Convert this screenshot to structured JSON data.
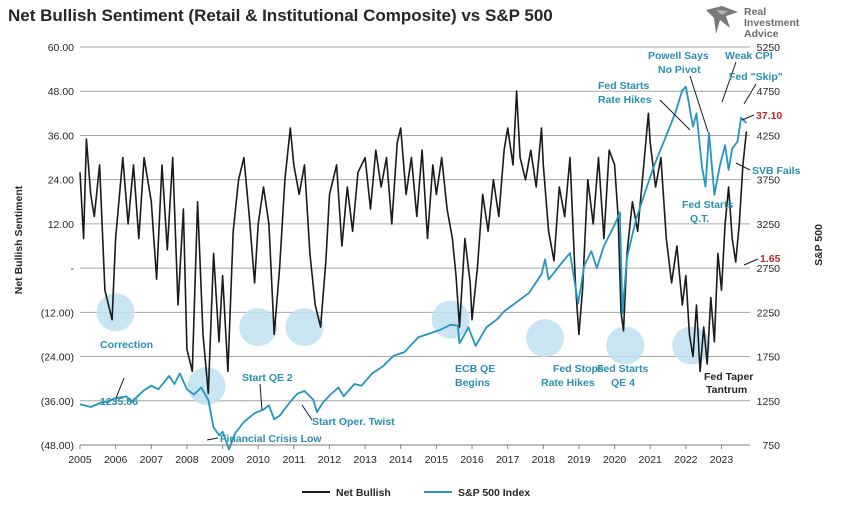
{
  "chart_data": {
    "type": "line",
    "title": "Net Bullish Sentiment (Retail & Institutional Composite) vs S&P 500",
    "ylabel": "Net Bullish Sentiment",
    "y2label": "S&P 500",
    "ylim": [
      -48,
      60
    ],
    "y2lim": [
      750,
      5250
    ],
    "xlim": [
      2005,
      2023.8
    ],
    "y_ticks": [
      "60.00",
      "48.00",
      "36.00",
      "24.00",
      "12.00",
      "-",
      "(12.00)",
      "(24.00)",
      "(36.00)",
      "(48.00)"
    ],
    "y_tick_values": [
      60,
      48,
      36,
      24,
      12,
      0,
      -12,
      -24,
      -36,
      -48
    ],
    "y2_ticks": [
      "5250",
      "4750",
      "4250",
      "3750",
      "3250",
      "2750",
      "2250",
      "1750",
      "1250",
      "750"
    ],
    "y2_tick_values": [
      5250,
      4750,
      4250,
      3750,
      3250,
      2750,
      2250,
      1750,
      1250,
      750
    ],
    "x_ticks": [
      "2005",
      "2006",
      "2007",
      "2008",
      "2009",
      "2010",
      "2011",
      "2012",
      "2013",
      "2014",
      "2015",
      "2016",
      "2017",
      "2018",
      "2019",
      "2020",
      "2021",
      "2022",
      "2023"
    ],
    "x_tick_values": [
      2005,
      2006,
      2007,
      2008,
      2009,
      2010,
      2011,
      2012,
      2013,
      2014,
      2015,
      2016,
      2017,
      2018,
      2019,
      2020,
      2021,
      2022,
      2023
    ],
    "series": [
      {
        "name": "Net Bullish",
        "color": "#1a1a1a",
        "axis": "left",
        "points": [
          [
            2005.0,
            26
          ],
          [
            2005.1,
            8
          ],
          [
            2005.18,
            35
          ],
          [
            2005.3,
            20
          ],
          [
            2005.4,
            14
          ],
          [
            2005.55,
            28
          ],
          [
            2005.7,
            -6
          ],
          [
            2005.9,
            -14
          ],
          [
            2006.0,
            8
          ],
          [
            2006.2,
            30
          ],
          [
            2006.35,
            12
          ],
          [
            2006.5,
            28
          ],
          [
            2006.65,
            8
          ],
          [
            2006.8,
            30
          ],
          [
            2007.0,
            18
          ],
          [
            2007.15,
            -3
          ],
          [
            2007.3,
            28
          ],
          [
            2007.45,
            5
          ],
          [
            2007.6,
            30
          ],
          [
            2007.75,
            -10
          ],
          [
            2007.9,
            16
          ],
          [
            2008.0,
            -22
          ],
          [
            2008.15,
            -28
          ],
          [
            2008.3,
            18
          ],
          [
            2008.45,
            -18
          ],
          [
            2008.6,
            -34
          ],
          [
            2008.75,
            4
          ],
          [
            2008.9,
            -20
          ],
          [
            2009.0,
            -2
          ],
          [
            2009.15,
            -28
          ],
          [
            2009.3,
            10
          ],
          [
            2009.45,
            24
          ],
          [
            2009.6,
            30
          ],
          [
            2009.75,
            14
          ],
          [
            2009.9,
            -4
          ],
          [
            2010.0,
            12
          ],
          [
            2010.15,
            22
          ],
          [
            2010.3,
            12
          ],
          [
            2010.45,
            -18
          ],
          [
            2010.6,
            0
          ],
          [
            2010.75,
            24
          ],
          [
            2010.9,
            38
          ],
          [
            2011.0,
            28
          ],
          [
            2011.15,
            20
          ],
          [
            2011.3,
            28
          ],
          [
            2011.45,
            4
          ],
          [
            2011.6,
            -10
          ],
          [
            2011.75,
            -16
          ],
          [
            2011.9,
            2
          ],
          [
            2012.0,
            20
          ],
          [
            2012.2,
            28
          ],
          [
            2012.35,
            6
          ],
          [
            2012.5,
            22
          ],
          [
            2012.65,
            10
          ],
          [
            2012.8,
            26
          ],
          [
            2013.0,
            30
          ],
          [
            2013.15,
            16
          ],
          [
            2013.3,
            32
          ],
          [
            2013.45,
            22
          ],
          [
            2013.6,
            30
          ],
          [
            2013.75,
            12
          ],
          [
            2013.9,
            34
          ],
          [
            2014.0,
            38
          ],
          [
            2014.15,
            20
          ],
          [
            2014.3,
            30
          ],
          [
            2014.45,
            14
          ],
          [
            2014.6,
            32
          ],
          [
            2014.75,
            8
          ],
          [
            2014.9,
            28
          ],
          [
            2015.0,
            20
          ],
          [
            2015.15,
            30
          ],
          [
            2015.3,
            16
          ],
          [
            2015.45,
            8
          ],
          [
            2015.55,
            -2
          ],
          [
            2015.65,
            -16
          ],
          [
            2015.8,
            8
          ],
          [
            2015.95,
            -4
          ],
          [
            2016.0,
            -14
          ],
          [
            2016.15,
            0
          ],
          [
            2016.3,
            20
          ],
          [
            2016.45,
            10
          ],
          [
            2016.6,
            24
          ],
          [
            2016.75,
            14
          ],
          [
            2016.9,
            32
          ],
          [
            2017.0,
            38
          ],
          [
            2017.15,
            28
          ],
          [
            2017.25,
            48
          ],
          [
            2017.35,
            30
          ],
          [
            2017.5,
            24
          ],
          [
            2017.65,
            32
          ],
          [
            2017.8,
            22
          ],
          [
            2017.95,
            38
          ],
          [
            2018.0,
            28
          ],
          [
            2018.15,
            10
          ],
          [
            2018.3,
            2
          ],
          [
            2018.45,
            22
          ],
          [
            2018.6,
            14
          ],
          [
            2018.75,
            30
          ],
          [
            2018.9,
            -4
          ],
          [
            2019.0,
            -18
          ],
          [
            2019.1,
            -6
          ],
          [
            2019.25,
            24
          ],
          [
            2019.4,
            12
          ],
          [
            2019.55,
            30
          ],
          [
            2019.7,
            8
          ],
          [
            2019.85,
            32
          ],
          [
            2020.0,
            28
          ],
          [
            2020.1,
            14
          ],
          [
            2020.18,
            -12
          ],
          [
            2020.25,
            -17
          ],
          [
            2020.35,
            4
          ],
          [
            2020.5,
            18
          ],
          [
            2020.65,
            10
          ],
          [
            2020.8,
            26
          ],
          [
            2020.95,
            42
          ],
          [
            2021.0,
            34
          ],
          [
            2021.15,
            22
          ],
          [
            2021.3,
            30
          ],
          [
            2021.45,
            8
          ],
          [
            2021.6,
            -4
          ],
          [
            2021.75,
            6
          ],
          [
            2021.9,
            -10
          ],
          [
            2022.0,
            -2
          ],
          [
            2022.1,
            -18
          ],
          [
            2022.2,
            -24
          ],
          [
            2022.3,
            -10
          ],
          [
            2022.4,
            -28
          ],
          [
            2022.5,
            -16
          ],
          [
            2022.6,
            -26
          ],
          [
            2022.7,
            -8
          ],
          [
            2022.8,
            -20
          ],
          [
            2022.9,
            4
          ],
          [
            2023.0,
            -6
          ],
          [
            2023.1,
            12
          ],
          [
            2023.2,
            22
          ],
          [
            2023.3,
            8
          ],
          [
            2023.4,
            1.65
          ],
          [
            2023.5,
            12
          ],
          [
            2023.6,
            28
          ],
          [
            2023.7,
            37.1
          ]
        ]
      },
      {
        "name": "S&P 500 Index",
        "color": "#2596be",
        "axis": "right",
        "points": [
          [
            2005.0,
            1211
          ],
          [
            2005.3,
            1180
          ],
          [
            2005.6,
            1230
          ],
          [
            2005.75,
            1235.86
          ],
          [
            2006.0,
            1280
          ],
          [
            2006.3,
            1300
          ],
          [
            2006.45,
            1240
          ],
          [
            2006.8,
            1370
          ],
          [
            2007.0,
            1420
          ],
          [
            2007.2,
            1380
          ],
          [
            2007.5,
            1530
          ],
          [
            2007.65,
            1440
          ],
          [
            2007.8,
            1560
          ],
          [
            2008.0,
            1380
          ],
          [
            2008.2,
            1320
          ],
          [
            2008.4,
            1400
          ],
          [
            2008.6,
            1260
          ],
          [
            2008.75,
            950
          ],
          [
            2008.9,
            860
          ],
          [
            2009.0,
            900
          ],
          [
            2009.18,
            700
          ],
          [
            2009.35,
            880
          ],
          [
            2009.6,
            1010
          ],
          [
            2009.9,
            1110
          ],
          [
            2010.15,
            1150
          ],
          [
            2010.3,
            1200
          ],
          [
            2010.45,
            1040
          ],
          [
            2010.6,
            1080
          ],
          [
            2010.9,
            1240
          ],
          [
            2011.1,
            1330
          ],
          [
            2011.3,
            1360
          ],
          [
            2011.55,
            1260
          ],
          [
            2011.65,
            1120
          ],
          [
            2011.8,
            1220
          ],
          [
            2012.0,
            1310
          ],
          [
            2012.25,
            1400
          ],
          [
            2012.4,
            1300
          ],
          [
            2012.7,
            1440
          ],
          [
            2012.9,
            1420
          ],
          [
            2013.2,
            1560
          ],
          [
            2013.5,
            1640
          ],
          [
            2013.8,
            1760
          ],
          [
            2014.1,
            1800
          ],
          [
            2014.5,
            1970
          ],
          [
            2014.8,
            2010
          ],
          [
            2015.1,
            2050
          ],
          [
            2015.4,
            2110
          ],
          [
            2015.6,
            2100
          ],
          [
            2015.65,
            1900
          ],
          [
            2015.9,
            2080
          ],
          [
            2016.1,
            1870
          ],
          [
            2016.4,
            2080
          ],
          [
            2016.7,
            2170
          ],
          [
            2016.9,
            2260
          ],
          [
            2017.3,
            2380
          ],
          [
            2017.6,
            2470
          ],
          [
            2017.95,
            2680
          ],
          [
            2018.05,
            2850
          ],
          [
            2018.15,
            2620
          ],
          [
            2018.5,
            2800
          ],
          [
            2018.75,
            2920
          ],
          [
            2018.98,
            2350
          ],
          [
            2019.15,
            2780
          ],
          [
            2019.35,
            2940
          ],
          [
            2019.5,
            2750
          ],
          [
            2019.7,
            3000
          ],
          [
            2020.0,
            3240
          ],
          [
            2020.15,
            3380
          ],
          [
            2020.22,
            2240
          ],
          [
            2020.35,
            2870
          ],
          [
            2020.6,
            3300
          ],
          [
            2020.9,
            3660
          ],
          [
            2021.1,
            3900
          ],
          [
            2021.4,
            4200
          ],
          [
            2021.7,
            4500
          ],
          [
            2021.9,
            4760
          ],
          [
            2022.0,
            4800
          ],
          [
            2022.2,
            4350
          ],
          [
            2022.3,
            4500
          ],
          [
            2022.45,
            3900
          ],
          [
            2022.55,
            3670
          ],
          [
            2022.65,
            4280
          ],
          [
            2022.8,
            3580
          ],
          [
            2022.95,
            3900
          ],
          [
            2023.1,
            4140
          ],
          [
            2023.2,
            3860
          ],
          [
            2023.3,
            4100
          ],
          [
            2023.45,
            4180
          ],
          [
            2023.55,
            4450
          ],
          [
            2023.7,
            4390
          ]
        ]
      }
    ],
    "highlight_circles": [
      {
        "x": 2006.0,
        "y": -12
      },
      {
        "x": 2008.55,
        "y": -32
      },
      {
        "x": 2010.0,
        "y": -16
      },
      {
        "x": 2011.3,
        "y": -16
      },
      {
        "x": 2015.4,
        "y": -14
      },
      {
        "x": 2018.05,
        "y": -19
      },
      {
        "x": 2020.3,
        "y": -21
      },
      {
        "x": 2022.15,
        "y": -21
      }
    ],
    "annotations": {
      "correction": "Correction",
      "start_value": "1235.86",
      "start_qe2": "Start QE 2",
      "financial_crisis_low": "Financial Crisis Low",
      "start_oper_twist": "Start Oper. Twist",
      "ecb_qe_line1": "ECB QE",
      "ecb_qe_line2": "Begins",
      "fed_stops_line1": "Fed Stops",
      "fed_stops_line2": "Rate Hikes",
      "fed_qe4_line1": "Fed Starts",
      "fed_qe4_line2": "QE 4",
      "fed_rate_hikes_line1": "Fed Starts",
      "fed_rate_hikes_line2": "Rate Hikes",
      "powell_line1": "Powell Says",
      "powell_line2": "No Pivot",
      "weak_cpi": "Weak CPI",
      "fed_skip": "Fed \"Skip\"",
      "svb_fails": "SVB Fails",
      "fed_qt_line1": "Fed Starts",
      "fed_qt_line2": "Q.T.",
      "fed_taper_line1": "Fed Taper",
      "fed_taper_line2": "Tantrum",
      "last_bullish": "37.10",
      "last_low": "1.65"
    },
    "legend": [
      "Net Bullish",
      "S&P 500 Index"
    ],
    "legend_position": "bottom-center",
    "grid": true
  },
  "logo": {
    "line1": "Real",
    "line2": "Investment",
    "line3": "Advice"
  },
  "colors": {
    "bullish": "#1a1a1a",
    "spx": "#2596be",
    "circle": "#bfe0f0",
    "red": "#c0282d"
  }
}
